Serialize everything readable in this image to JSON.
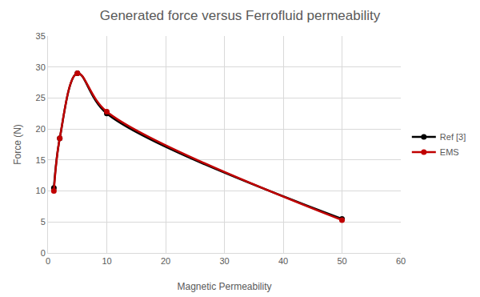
{
  "chart_data": {
    "type": "line",
    "title": "Generated force versus Ferrofluid permeability",
    "x_label": "Magnetic Permeability",
    "y_label": "Force (N)",
    "x": [
      1,
      2,
      5,
      10,
      50
    ],
    "series": [
      {
        "name": "Ref [3]",
        "color": "#000000",
        "values": [
          10.5,
          18.5,
          29,
          22.5,
          5.5
        ]
      },
      {
        "name": "EMS",
        "color": "#c00000",
        "values": [
          10,
          18.5,
          29,
          22.8,
          5.3
        ]
      }
    ],
    "xlim": [
      0,
      60
    ],
    "xticks": [
      0,
      10,
      20,
      30,
      40,
      50,
      60
    ],
    "ylim": [
      0,
      35
    ],
    "yticks": [
      0,
      5,
      10,
      15,
      20,
      25,
      30,
      35
    ],
    "grid": true,
    "legend": "right",
    "marker": "circle",
    "line_style": "smooth"
  }
}
